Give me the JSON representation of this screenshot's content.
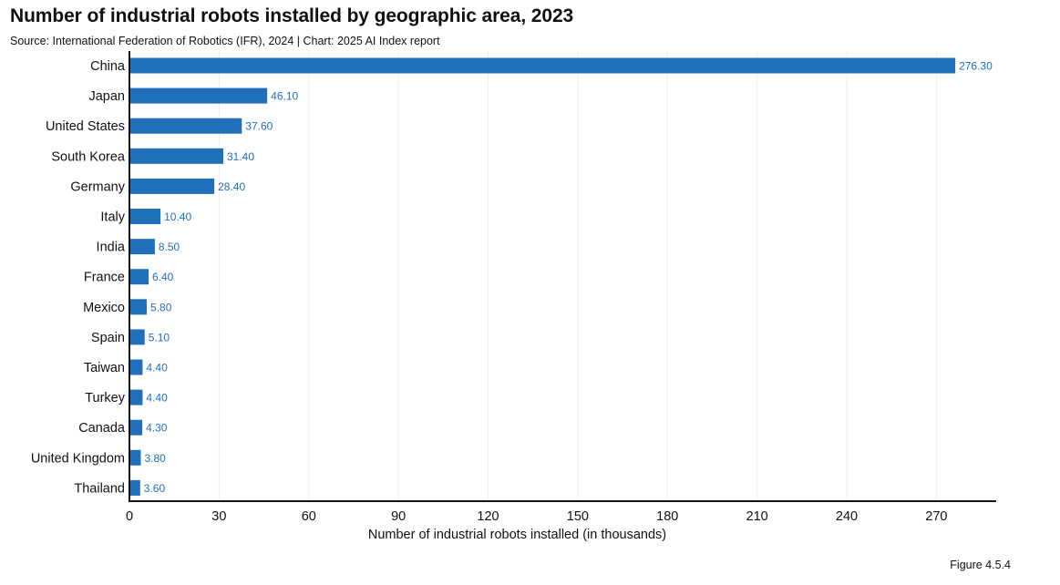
{
  "title": "Number of industrial robots installed by geographic area, 2023",
  "subtitle": "Source: International Federation of Robotics (IFR), 2024 | Chart: 2025 AI Index report",
  "figure_label": "Figure 4.5.4",
  "colors": {
    "bar": "#1f6fba",
    "value_label": "#1f6fba",
    "grid": "#eeeeee",
    "axis": "#111111"
  },
  "chart_data": {
    "type": "bar",
    "orientation": "horizontal",
    "title": "Number of industrial robots installed by geographic area, 2023",
    "subtitle": "Source: International Federation of Robotics (IFR), 2024 | Chart: 2025 AI Index report",
    "xlabel": "Number of industrial robots installed (in thousands)",
    "ylabel": "",
    "categories": [
      "China",
      "Japan",
      "United States",
      "South Korea",
      "Germany",
      "Italy",
      "India",
      "France",
      "Mexico",
      "Spain",
      "Taiwan",
      "Turkey",
      "Canada",
      "United Kingdom",
      "Thailand"
    ],
    "values": [
      276.3,
      46.1,
      37.6,
      31.4,
      28.4,
      10.4,
      8.5,
      6.4,
      5.8,
      5.1,
      4.4,
      4.4,
      4.3,
      3.8,
      3.6
    ],
    "value_labels": [
      "276.30",
      "46.10",
      "37.60",
      "31.40",
      "28.40",
      "10.40",
      "8.50",
      "6.40",
      "5.80",
      "5.10",
      "4.40",
      "4.40",
      "4.30",
      "3.80",
      "3.60"
    ],
    "xlim": [
      0,
      290
    ],
    "xticks": [
      0,
      30,
      60,
      90,
      120,
      150,
      180,
      210,
      240,
      270
    ],
    "grid": true,
    "legend": "none"
  }
}
